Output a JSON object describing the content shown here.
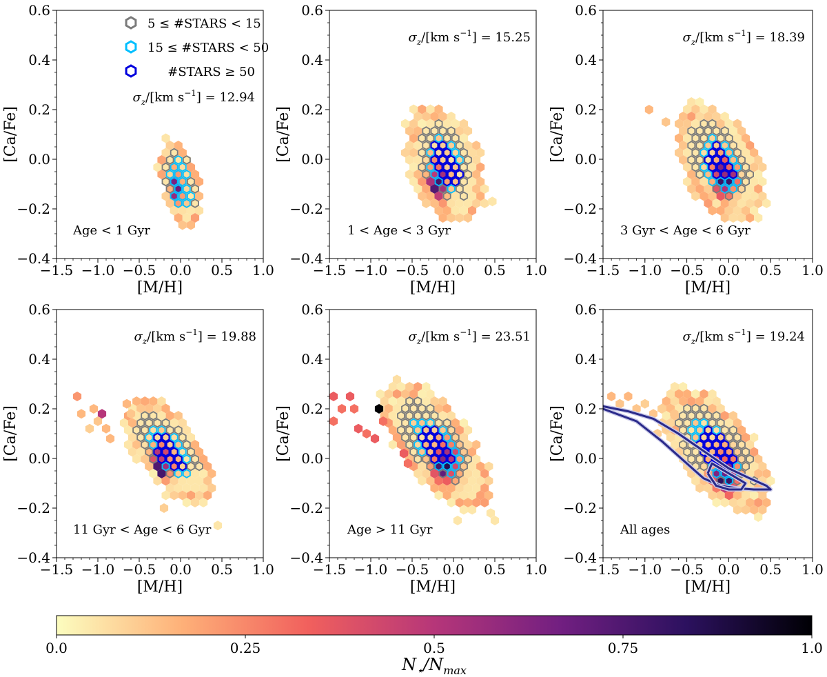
{
  "colors": {
    "low_count_edge": "#7a7a7a",
    "mid_count_edge": "#00bfff",
    "high_count_edge": "#0000dd",
    "contour": "#2a2a8a",
    "contour_inner": "#c8c8e8",
    "colormap": [
      "#fcfdbf",
      "#feb078",
      "#f1605d",
      "#b63679",
      "#721f81",
      "#2c115f",
      "#000004"
    ]
  },
  "legend": {
    "low": "5 ≤ #STARS < 15",
    "mid": "15 ≤ #STARS < 50",
    "high": "#STARS ≥ 50"
  },
  "colorbar": {
    "label": "N⋆/Nmax",
    "label_main": "N",
    "label_sub1": "⋆",
    "label_mid": "/N",
    "label_sub2": "max",
    "ticks": [
      {
        "v": 0.0,
        "label": "0.0"
      },
      {
        "v": 0.25,
        "label": "0.25"
      },
      {
        "v": 0.5,
        "label": "0.5"
      },
      {
        "v": 0.75,
        "label": "0.75"
      },
      {
        "v": 1.0,
        "label": "1.0"
      }
    ]
  },
  "chart_data": [
    {
      "type": "heatmap",
      "id": "p1",
      "xlabel": "[M/H]",
      "ylabel": "[Ca/Fe]",
      "xlim": [
        -1.5,
        1.0
      ],
      "ylim": [
        -0.4,
        0.6
      ],
      "xticks": [
        -1.5,
        -1.0,
        -0.5,
        0.0,
        0.5,
        1.0
      ],
      "yticks": [
        -0.4,
        -0.2,
        0.0,
        0.2,
        0.4,
        0.6
      ],
      "sigma_label": "σz/[km s−1] = 12.94",
      "sigma_value": "12.94",
      "age_label": "Age < 1 Gyr",
      "blob": {
        "cx": 0.0,
        "cy": -0.1,
        "sx": 0.12,
        "sy": 0.085,
        "rho": -0.4,
        "peak": [
          -0.05,
          -0.12
        ],
        "outline": 0.18,
        "mid": 0.5,
        "high": 2.0
      },
      "extras": []
    },
    {
      "type": "heatmap",
      "id": "p2",
      "xlabel": "[M/H]",
      "ylabel": "[Ca/Fe]",
      "xlim": [
        -1.5,
        1.0
      ],
      "ylim": [
        -0.4,
        0.6
      ],
      "xticks": [
        -1.5,
        -1.0,
        -0.5,
        0.0,
        0.5,
        1.0
      ],
      "yticks": [
        -0.4,
        -0.2,
        0.0,
        0.2,
        0.4,
        0.6
      ],
      "sigma_label": "σz/[km s−1] = 15.25",
      "sigma_value": "15.25",
      "age_label": "1 < Age < 3 Gyr",
      "blob": {
        "cx": -0.1,
        "cy": -0.02,
        "sx": 0.22,
        "sy": 0.11,
        "rho": -0.35,
        "peak": [
          -0.2,
          -0.1
        ],
        "outline": 0.32,
        "mid": 0.62,
        "high": 1.0
      },
      "extras": [
        [
          0.47,
          -0.17,
          0.05
        ]
      ]
    },
    {
      "type": "heatmap",
      "id": "p3",
      "xlabel": "[M/H]",
      "ylabel": "[Ca/Fe]",
      "xlim": [
        -1.5,
        1.0
      ],
      "ylim": [
        -0.4,
        0.6
      ],
      "xticks": [
        -1.5,
        -1.0,
        -0.5,
        0.0,
        0.5,
        1.0
      ],
      "yticks": [
        -0.4,
        -0.2,
        0.0,
        0.2,
        0.4,
        0.6
      ],
      "sigma_label": "σz/[km s−1] = 18.39",
      "sigma_value": "18.39",
      "age_label": "3 Gyr < Age < 6 Gyr",
      "blob": {
        "cx": -0.1,
        "cy": -0.02,
        "sx": 0.25,
        "sy": 0.11,
        "rho": -0.45,
        "peak": [
          -0.05,
          -0.08
        ],
        "outline": 0.3,
        "mid": 0.6,
        "high": 1.05
      },
      "extras": [
        [
          -0.95,
          0.2,
          0.15
        ],
        [
          -0.75,
          0.15,
          0.12
        ]
      ]
    },
    {
      "type": "heatmap",
      "id": "p4",
      "xlabel": "[M/H]",
      "ylabel": "[Ca/Fe]",
      "xlim": [
        -1.5,
        1.0
      ],
      "ylim": [
        -0.4,
        0.6
      ],
      "xticks": [
        -1.5,
        -1.0,
        -0.5,
        0.0,
        0.5,
        1.0
      ],
      "yticks": [
        -0.4,
        -0.2,
        0.0,
        0.2,
        0.4,
        0.6
      ],
      "sigma_label": "σz/[km s−1] = 19.88",
      "sigma_value": "19.88",
      "age_label": "11 Gyr < Age < 6 Gyr",
      "blob": {
        "cx": -0.15,
        "cy": 0.03,
        "sx": 0.25,
        "sy": 0.1,
        "rho": -0.6,
        "peak": [
          -0.25,
          -0.03
        ],
        "outline": 0.3,
        "mid": 0.6,
        "high": 1.05
      },
      "extras": [
        [
          -1.25,
          0.25,
          0.22
        ],
        [
          -1.2,
          0.18,
          0.15
        ],
        [
          -1.05,
          0.2,
          0.15
        ],
        [
          -1.0,
          0.15,
          0.12
        ],
        [
          -0.95,
          0.18,
          0.5
        ],
        [
          -0.9,
          0.12,
          0.15
        ],
        [
          -1.1,
          0.12,
          0.1
        ],
        [
          -0.85,
          0.08,
          0.15
        ],
        [
          -0.65,
          0.22,
          0.15
        ],
        [
          -0.6,
          0.18,
          0.12
        ],
        [
          -0.2,
          -0.2,
          0.1
        ],
        [
          0.45,
          -0.27,
          0.05
        ]
      ]
    },
    {
      "type": "heatmap",
      "id": "p5",
      "xlabel": "[M/H]",
      "ylabel": "[Ca/Fe]",
      "xlim": [
        -1.5,
        1.0
      ],
      "ylim": [
        -0.4,
        0.6
      ],
      "xticks": [
        -1.5,
        -1.0,
        -0.5,
        0.0,
        0.5,
        1.0
      ],
      "yticks": [
        -0.4,
        -0.2,
        0.0,
        0.2,
        0.4,
        0.6
      ],
      "sigma_label": "σz/[km s−1] = 23.51",
      "sigma_value": "23.51",
      "age_label": "Age > 11 Gyr",
      "blob": {
        "cx": -0.2,
        "cy": 0.05,
        "sx": 0.3,
        "sy": 0.12,
        "rho": -0.65,
        "peak": [
          -0.1,
          -0.02
        ],
        "outline": 0.3,
        "mid": 0.6,
        "high": 1.05
      },
      "extras": [
        [
          -1.45,
          0.25,
          0.35
        ],
        [
          -1.45,
          0.15,
          0.3
        ],
        [
          -1.35,
          0.2,
          0.3
        ],
        [
          -1.25,
          0.25,
          0.35
        ],
        [
          -1.2,
          0.2,
          0.3
        ],
        [
          -1.15,
          0.12,
          0.35
        ],
        [
          -1.05,
          0.1,
          0.3
        ],
        [
          -0.95,
          0.08,
          0.35
        ],
        [
          -0.9,
          0.2,
          1.0
        ],
        [
          -0.85,
          0.15,
          0.3
        ],
        [
          -0.6,
          0.02,
          0.35
        ],
        [
          -0.55,
          -0.02,
          0.3
        ],
        [
          0.05,
          -0.25,
          0.05
        ],
        [
          0.5,
          -0.25,
          0.05
        ],
        [
          0.45,
          -0.22,
          0.05
        ]
      ]
    },
    {
      "type": "heatmap",
      "id": "p6",
      "xlabel": "[M/H]",
      "ylabel": "[Ca/Fe]",
      "xlim": [
        -1.5,
        1.0
      ],
      "ylim": [
        -0.4,
        0.6
      ],
      "xticks": [
        -1.5,
        -1.0,
        -0.5,
        0.0,
        0.5,
        1.0
      ],
      "yticks": [
        -0.4,
        -0.2,
        0.0,
        0.2,
        0.4,
        0.6
      ],
      "sigma_label": "σz/[km s−1] = 19.24",
      "sigma_value": "19.24",
      "age_label": "All ages",
      "blob": {
        "cx": -0.15,
        "cy": 0.03,
        "sx": 0.3,
        "sy": 0.12,
        "rho": -0.6,
        "peak": [
          -0.05,
          -0.07
        ],
        "outline": 0.3,
        "mid": 0.6,
        "high": 1.05
      },
      "extras": [
        [
          -1.4,
          0.25,
          0.15
        ],
        [
          -1.3,
          0.22,
          0.12
        ],
        [
          -1.2,
          0.25,
          0.15
        ],
        [
          -1.1,
          0.2,
          0.12
        ],
        [
          -1.0,
          0.22,
          0.1
        ],
        [
          -0.9,
          0.18,
          0.12
        ],
        [
          -0.8,
          0.2,
          0.1
        ],
        [
          -0.75,
          0.12,
          0.1
        ],
        [
          -0.85,
          0.1,
          0.1
        ],
        [
          -0.65,
          0.18,
          0.12
        ]
      ],
      "contours": [
        {
          "name": "outer",
          "points": [
            [
              -1.5,
              0.21
            ],
            [
              -1.2,
              0.19
            ],
            [
              -0.9,
              0.16
            ],
            [
              -0.6,
              0.1
            ],
            [
              -0.3,
              0.03
            ],
            [
              0.0,
              -0.04
            ],
            [
              0.25,
              -0.08
            ],
            [
              0.45,
              -0.11
            ],
            [
              0.5,
              -0.125
            ],
            [
              0.3,
              -0.125
            ],
            [
              0.1,
              -0.12
            ],
            [
              -0.1,
              -0.11
            ],
            [
              -0.3,
              -0.08
            ],
            [
              -0.5,
              -0.02
            ],
            [
              -0.8,
              0.07
            ],
            [
              -1.1,
              0.15
            ],
            [
              -1.5,
              0.2
            ]
          ]
        },
        {
          "name": "inner",
          "points": [
            [
              -0.25,
              -0.06
            ],
            [
              -0.2,
              -0.02
            ],
            [
              -0.1,
              -0.04
            ],
            [
              0.05,
              -0.07
            ],
            [
              0.2,
              -0.1
            ],
            [
              0.15,
              -0.125
            ],
            [
              0.0,
              -0.125
            ],
            [
              -0.15,
              -0.11
            ],
            [
              -0.25,
              -0.06
            ]
          ]
        }
      ]
    }
  ]
}
